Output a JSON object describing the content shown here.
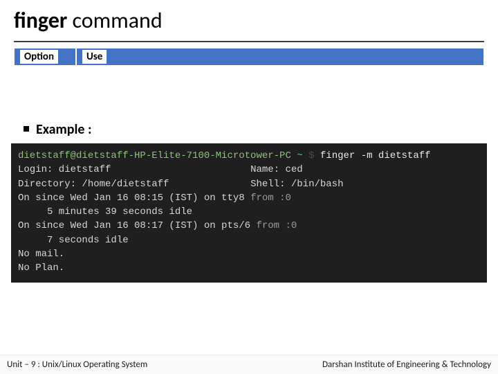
{
  "title": {
    "bold": "finger",
    "normal": " command"
  },
  "table": {
    "header_bg": "#4472c4",
    "cell_bg": "#ffffff",
    "cols": [
      {
        "label": "Option",
        "width": 90
      },
      {
        "label": "Use",
        "width": "auto"
      }
    ]
  },
  "example_label": "Example :",
  "terminal": {
    "bg": "#1f1f1f",
    "fg": "#d6d6d6",
    "font": "Courier New",
    "fontsize": 14,
    "prompt": {
      "userhost": "dietstaff@dietstaff-HP-Elite-7100-Microtower-PC",
      "path": "~",
      "symbol": "$",
      "command": "finger -m dietstaff"
    },
    "lines": {
      "l1a": "Login: dietstaff",
      "l1pad": "                        ",
      "l1b": "Name: ced",
      "l2a": "Directory: /home/dietstaff",
      "l2pad": "              ",
      "l2b": "Shell: /bin/bash",
      "l3a": "On since Wed Jan 16 08:15 (IST) on tty8 ",
      "l3b": "from :0",
      "l4": "     5 minutes 39 seconds idle",
      "l5a": "On since Wed Jan 16 08:17 (IST) on pts/6 ",
      "l5b": "from :0",
      "l6": "     7 seconds idle",
      "l7": "No mail.",
      "l8": "No Plan."
    }
  },
  "footer": {
    "left": "Unit – 9  : Unix/Linux Operating System",
    "right": "Darshan Institute of Engineering & Technology"
  },
  "colors": {
    "prompt_userhost": "#8ec07c",
    "prompt_path": "#5fb3b3",
    "prompt_symbol": "#4b4b4b",
    "dim": "#9a9a9a"
  }
}
